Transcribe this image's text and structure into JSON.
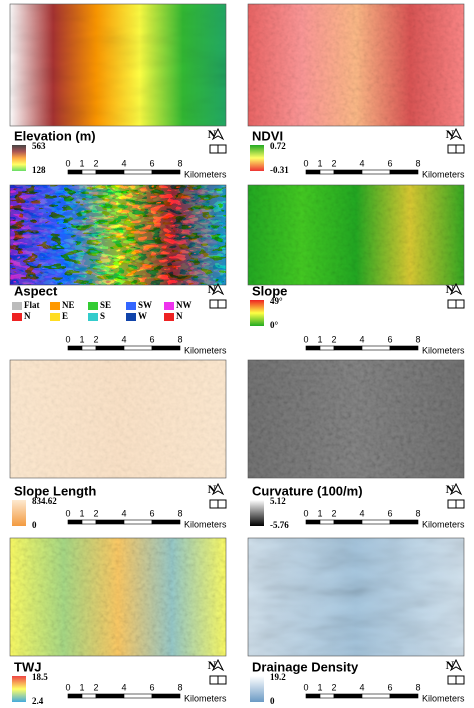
{
  "panels": [
    {
      "title": "Elevation (m)",
      "legend_max": "563",
      "legend_min": "128"
    },
    {
      "title": "NDVI",
      "legend_max": "0.72",
      "legend_min": "-0.31"
    },
    {
      "title": "Aspect",
      "legend_classes": [
        "Flat",
        "NE",
        "SE",
        "SW",
        "NW",
        "N",
        "E",
        "S",
        "W",
        "N"
      ]
    },
    {
      "title": "Slope",
      "legend_max": "49°",
      "legend_min": "0°"
    },
    {
      "title": "Slope Length",
      "legend_max": "834.62",
      "legend_min": "0"
    },
    {
      "title": "Curvature (100/m)",
      "legend_max": "5.12",
      "legend_min": "-5.76"
    },
    {
      "title": "TWJ",
      "legend_max": "18.5",
      "legend_min": "2.4"
    },
    {
      "title": "Drainage Density",
      "legend_max": "19.2",
      "legend_min": "0"
    }
  ],
  "scale_bar": {
    "ticks": [
      "0",
      "1",
      "2",
      "4",
      "6",
      "8"
    ],
    "unit": "Kilometers"
  },
  "north_label": "N"
}
